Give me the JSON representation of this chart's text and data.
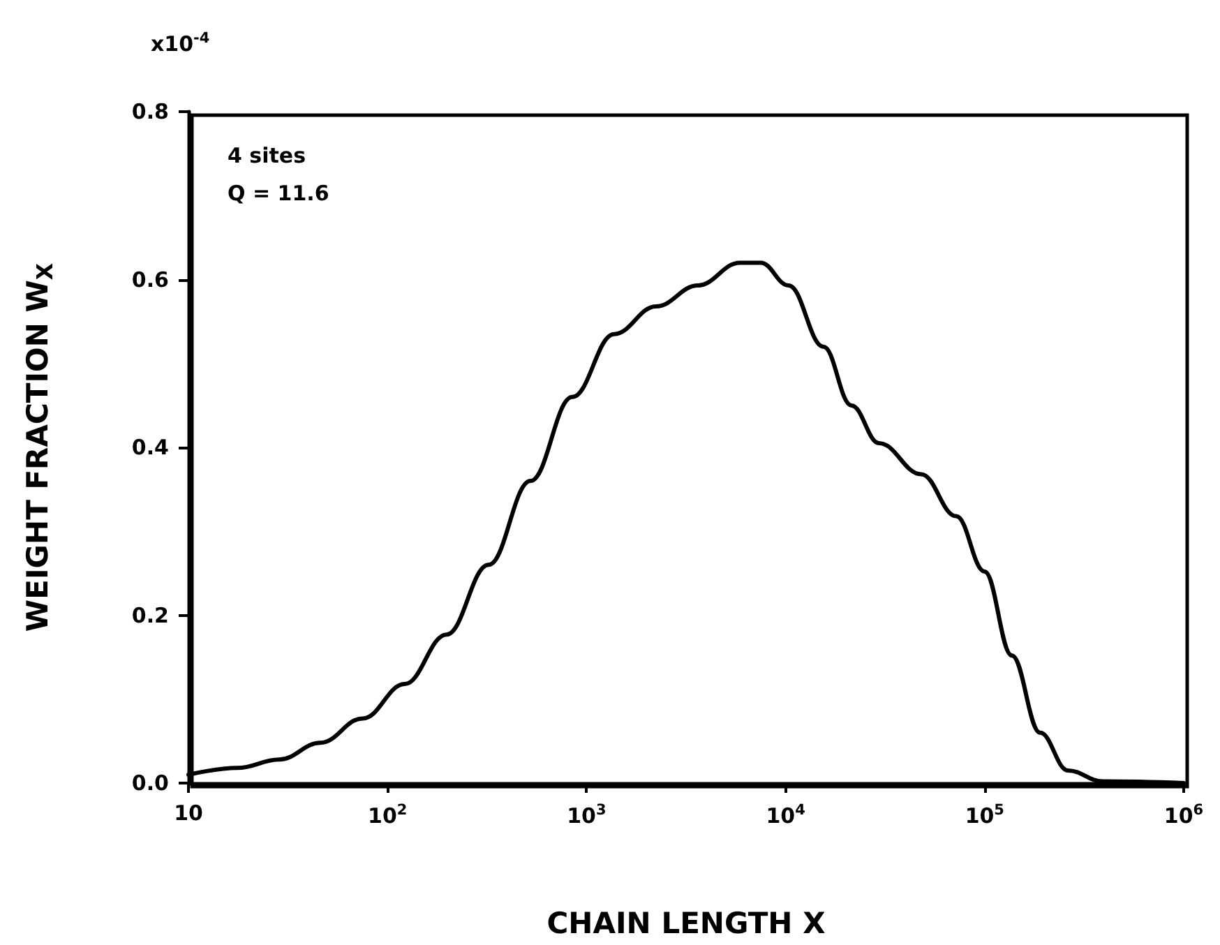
{
  "chart_data": {
    "type": "line",
    "xlabel": "CHAIN LENGTH X",
    "ylabel": "WEIGHT FRACTION W$_{X}$",
    "annotations": [
      "x10$^{-4}$",
      "4 sites",
      "Q = 11.6"
    ],
    "log": "x",
    "x": [
      10,
      17.6,
      28.6,
      46,
      75,
      122,
      198,
      322,
      523,
      848,
      1376,
      2234,
      3623,
      5890,
      7500,
      10350,
      15500,
      21400,
      29500,
      48000,
      72000,
      100000,
      137000,
      190000,
      262000,
      392000,
      1000000
    ],
    "series": [
      {
        "color": "#000000",
        "values": [
          0.01,
          0.018,
          0.028,
          0.048,
          0.077,
          0.118,
          0.177,
          0.26,
          0.36,
          0.46,
          0.535,
          0.568,
          0.593,
          0.62,
          0.62,
          0.593,
          0.52,
          0.45,
          0.405,
          0.368,
          0.318,
          0.252,
          0.152,
          0.06,
          0.015,
          0.002,
          0.0
        ]
      }
    ],
    "xlim": [
      10,
      1000000
    ],
    "xticks": [
      10,
      {
        "value": 100,
        "label": "10$^{2}$"
      },
      {
        "value": 1000,
        "label": "10$^{3}$"
      },
      {
        "value": 10000,
        "label": "10$^{4}$"
      },
      {
        "value": 100000,
        "label": "10$^{5}$"
      },
      {
        "value": 1000000,
        "label": "10$^{6}$"
      }
    ],
    "ylim": [
      0,
      0.8
    ],
    "yticks": [
      {
        "value": 0,
        "label": "0.0"
      },
      0.2,
      0.4,
      0.6,
      0.8
    ],
    "grid": false,
    "marker": "none",
    "line_style": "solid"
  }
}
